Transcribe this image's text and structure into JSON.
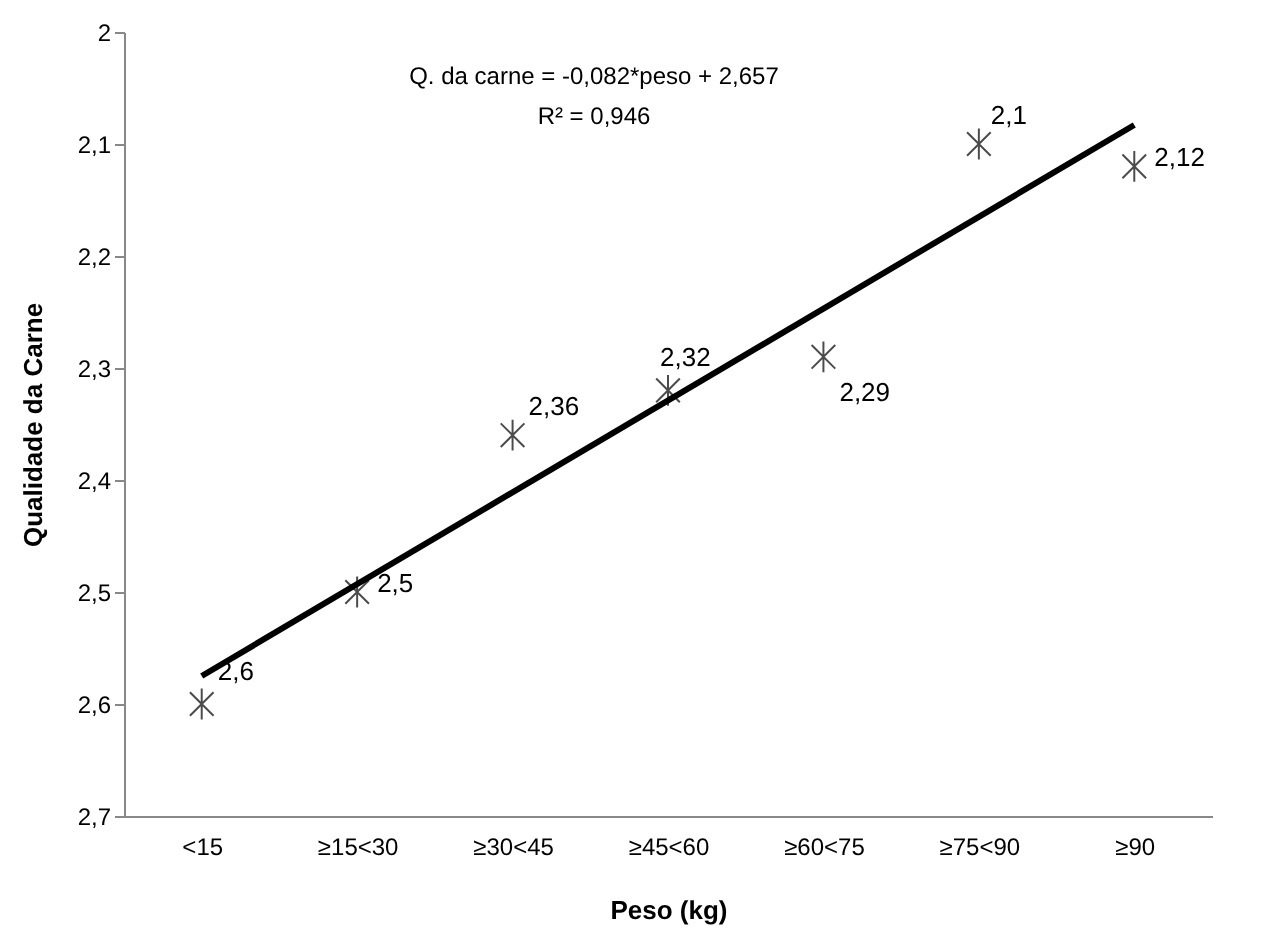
{
  "chart_data": {
    "type": "scatter",
    "xlabel": "Peso (kg)",
    "ylabel": "Qualidade da Carne",
    "categories": [
      "<15",
      "≥15<30",
      "≥30<45",
      "≥45<60",
      "≥60<75",
      "≥75<90",
      "≥90"
    ],
    "series": [
      {
        "color": "#000000",
        "marker": "cross",
        "values": [
          2.6,
          2.5,
          2.36,
          2.32,
          2.29,
          2.1,
          2.12
        ],
        "value_labels": [
          "2,6",
          "2,5",
          "2,36",
          "2,32",
          "2,29",
          "2,1",
          "2,12"
        ]
      },
      {
        "type": "line",
        "color": "#000000",
        "line_style": "solid",
        "values": [
          2.575,
          null,
          null,
          null,
          null,
          null,
          2.083
        ]
      }
    ],
    "ylim": [
      2.7,
      2.0
    ],
    "yticks": [
      2,
      {
        "value": 2.1,
        "label": "2,1"
      },
      {
        "value": 2.2,
        "label": "2,2"
      },
      {
        "value": 2.3,
        "label": "2,3"
      },
      {
        "value": 2.4,
        "label": "2,4"
      },
      {
        "value": 2.5,
        "label": "2,5"
      },
      {
        "value": 2.6,
        "label": "2,6"
      },
      {
        "value": 2.7,
        "label": "2,7"
      }
    ],
    "annotations": [
      "Q. da carne = -0,082*peso + 2,657",
      "R² = 0,946"
    ],
    "grid": false
  }
}
